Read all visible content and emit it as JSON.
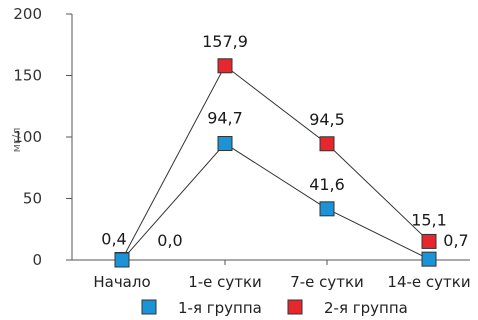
{
  "chart_data": {
    "type": "line",
    "ylabel": "мг/л",
    "ylim": [
      0,
      200
    ],
    "yticks": [
      0,
      50,
      100,
      150,
      200
    ],
    "categories": [
      "Начало",
      "1-е сутки",
      "7-е сутки",
      "14-е сутки"
    ],
    "series": [
      {
        "name": "1-я группа",
        "color": "#1b93d6",
        "values": [
          0.0,
          94.7,
          41.6,
          0.7
        ],
        "labels": [
          "0,0",
          "94,7",
          "41,6",
          "0,7"
        ]
      },
      {
        "name": "2-я группа",
        "color": "#e8262d",
        "values": [
          0.4,
          157.9,
          94.5,
          15.1
        ],
        "labels": [
          "0,4",
          "157,9",
          "94,5",
          "15,1"
        ]
      }
    ],
    "grid": false,
    "legend_position": "bottom"
  }
}
